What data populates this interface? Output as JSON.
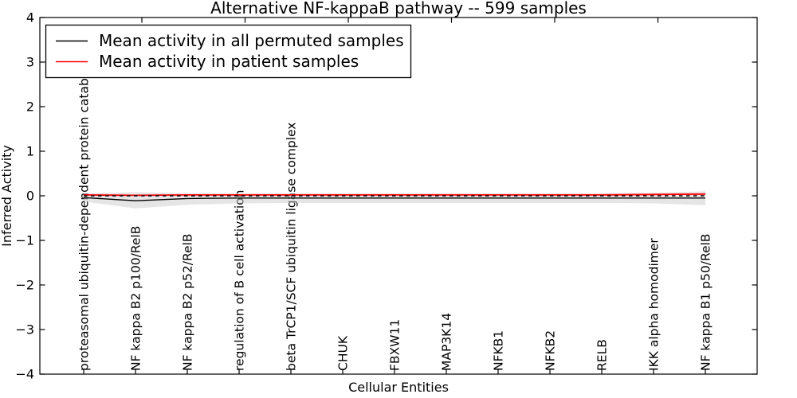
{
  "chart_data": {
    "type": "line",
    "title": "Alternative NF-kappaB pathway -- 599 samples",
    "xlabel": "Cellular Entities",
    "ylabel": "Inferred Activity",
    "ylim": [
      -4,
      4
    ],
    "yticks": [
      4,
      3,
      2,
      1,
      0,
      -1,
      -2,
      -3,
      -4
    ],
    "grid": false,
    "legend_position": "upper left",
    "categories": [
      "proteasomal ubiquitin-dependent protein catabolic pr",
      "NF kappa B2 p100/RelB",
      "NF kappa B2 p52/RelB",
      "regulation of B cell activation",
      "beta TrCP1/SCF ubiquitin ligase complex",
      "CHUK",
      "FBXW11",
      "MAP3K14",
      "NFKB1",
      "NFKB2",
      "RELB",
      "IKK alpha homodimer",
      "NF kappa B1 p50/RelB"
    ],
    "series": [
      {
        "name": "Mean activity in all permuted samples",
        "color": "#000000",
        "style": "solid",
        "values": [
          -0.04,
          -0.11,
          -0.06,
          -0.05,
          -0.05,
          -0.05,
          -0.05,
          -0.05,
          -0.05,
          -0.05,
          -0.05,
          -0.05,
          -0.05
        ]
      },
      {
        "name": "Mean activity in patient samples",
        "color": "#ff0000",
        "style": "solid",
        "values": [
          0.02,
          0.01,
          0.02,
          0.02,
          0.02,
          0.02,
          0.02,
          0.02,
          0.02,
          0.02,
          0.02,
          0.03,
          0.04
        ]
      }
    ],
    "band": {
      "color": "#cccccc",
      "opacity": 0.5,
      "upper": [
        0.06,
        0.08,
        0.06,
        0.06,
        0.06,
        0.06,
        0.06,
        0.06,
        0.06,
        0.06,
        0.06,
        0.07,
        0.1
      ],
      "lower": [
        -0.13,
        -0.28,
        -0.2,
        -0.17,
        -0.16,
        -0.16,
        -0.16,
        -0.16,
        -0.16,
        -0.16,
        -0.16,
        -0.17,
        -0.21
      ]
    },
    "zero_line": {
      "y": 0,
      "color": "#000000",
      "style": "dashed"
    }
  }
}
